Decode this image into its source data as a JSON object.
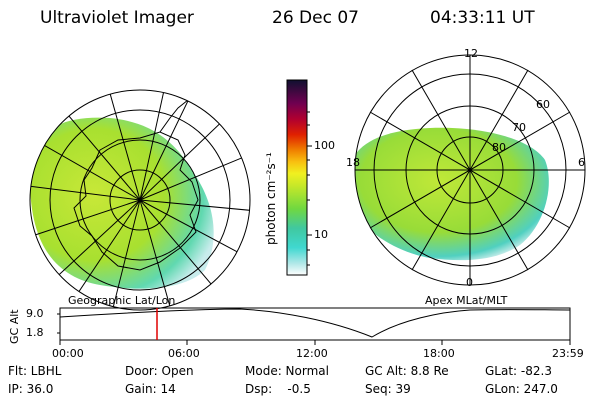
{
  "header": {
    "instrument": "Ultraviolet Imager",
    "date": "26 Dec 07",
    "time": "04:33:11 UT"
  },
  "colorbar": {
    "label": "photon cm⁻²s⁻¹",
    "ticks": [
      "100",
      "10"
    ]
  },
  "geographic_panel": {
    "caption": "Geographic Lat/Lon"
  },
  "apex_panel": {
    "caption": "Apex MLat/MLT",
    "mlt_labels": {
      "top": "12",
      "left": "18",
      "right": "6",
      "bottom": "0"
    },
    "lat_labels": [
      "60",
      "70",
      "80"
    ]
  },
  "altitude_plot": {
    "ylabel": "GC Alt",
    "yticks": [
      "9.0",
      "1.8"
    ],
    "xticks": [
      "00:00",
      "06:00",
      "12:00",
      "18:00",
      "23:59"
    ]
  },
  "info": {
    "flt": "Flt: LBHL",
    "ip": "IP: 36.0",
    "door": "Door: Open",
    "gain": "Gain: 14",
    "mode": "Mode: Normal",
    "dsp": "Dsp:    -0.5",
    "gc_alt": "GC Alt: 8.8 Re",
    "seq": "Seq: 39",
    "glat": "GLat: -82.3",
    "glon": "GLon: 247.0"
  },
  "colors": {
    "aurora_green": "#a8e030",
    "aurora_cyan": "#50d8d0",
    "current_time_marker": "#e00000"
  }
}
